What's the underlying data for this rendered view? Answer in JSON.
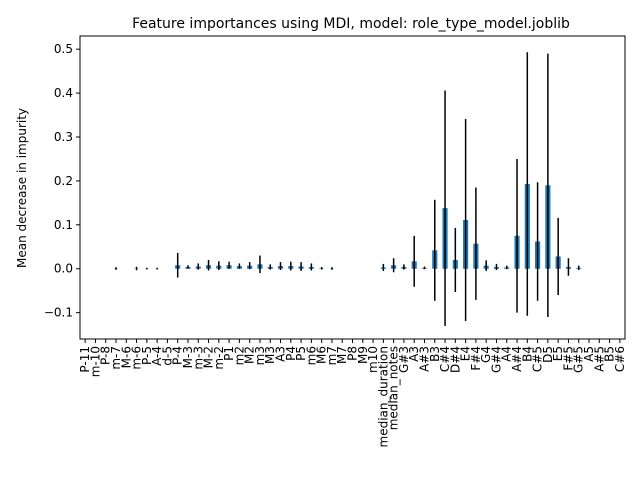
{
  "chart_data": {
    "type": "bar",
    "title": "Feature importances using MDI, model: role_type_model.joblib",
    "xlabel": "",
    "ylabel": "Mean decrease in impurity",
    "ylim": [
      -0.16,
      0.53
    ],
    "yticks": [
      -0.1,
      0.0,
      0.1,
      0.2,
      0.3,
      0.4,
      0.5
    ],
    "ytick_labels": [
      "−0.1",
      "0.0",
      "0.1",
      "0.2",
      "0.3",
      "0.4",
      "0.5"
    ],
    "grid": false,
    "bar_color": "#1f77b4",
    "error_color": "#000000",
    "categories": [
      "P-11",
      "m-10",
      "P-8",
      "m-7",
      "M-6",
      "m-6",
      "P-5",
      "A-4",
      "d-5",
      "P-4",
      "M-3",
      "m-3",
      "M-2",
      "m-2",
      "P1",
      "m2",
      "M2",
      "m3",
      "M3",
      "A3",
      "P4",
      "P5",
      "m6",
      "M6",
      "m7",
      "M7",
      "P8",
      "M9",
      "m10",
      "median_duration",
      "median_notes",
      "G#3",
      "A3",
      "A#3",
      "B3",
      "C#4",
      "D#4",
      "E4",
      "F#4",
      "G4",
      "G#4",
      "A4",
      "A#4",
      "B4",
      "C#5",
      "D5",
      "E5",
      "F#5",
      "G#5",
      "A5",
      "A#5",
      "B5",
      "C#6"
    ],
    "values": [
      0,
      0,
      0,
      0.0005,
      0,
      0.0005,
      0.0003,
      0.0003,
      0,
      0.008,
      0.004,
      0.005,
      0.008,
      0.007,
      0.008,
      0.006,
      0.007,
      0.01,
      0.004,
      0.006,
      0.006,
      0.005,
      0.004,
      0.001,
      0.0005,
      0,
      0,
      0,
      0,
      0.003,
      0.008,
      0.004,
      0.017,
      0.002,
      0.042,
      0.138,
      0.02,
      0.111,
      0.057,
      0.007,
      0.004,
      0.003,
      0.075,
      0.193,
      0.062,
      0.19,
      0.028,
      0.004,
      0.002,
      0,
      0,
      0,
      0
    ],
    "errors": [
      0,
      0,
      0,
      0.003,
      0,
      0.004,
      0.002,
      0.002,
      0,
      0.028,
      0.004,
      0.007,
      0.012,
      0.01,
      0.008,
      0.006,
      0.008,
      0.02,
      0.006,
      0.009,
      0.01,
      0.01,
      0.008,
      0.003,
      0.003,
      0,
      0,
      0,
      0,
      0.008,
      0.016,
      0.006,
      0.058,
      0.003,
      0.115,
      0.268,
      0.073,
      0.23,
      0.128,
      0.012,
      0.007,
      0.004,
      0.175,
      0.3,
      0.135,
      0.3,
      0.088,
      0.02,
      0.005,
      0,
      0,
      0,
      0
    ]
  }
}
